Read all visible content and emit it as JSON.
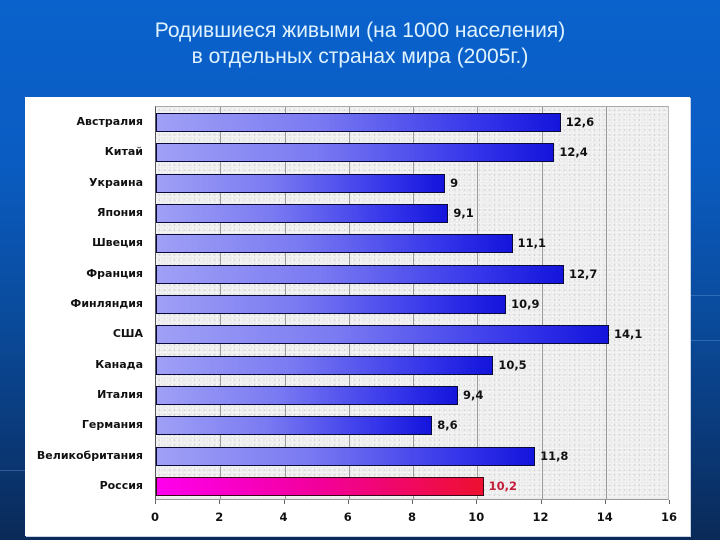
{
  "slide": {
    "title_line1": "Родившиеся живыми (на 1000 населения)",
    "title_line2": "в отдельных странах мира (2005г.)",
    "colors": {
      "background_top": "#0a62cc",
      "background_bottom": "#0a2a58",
      "title_text": "#dff2ff",
      "bar_start": "#a0a0f6",
      "bar_end": "#1414dc",
      "highlight_bar_start": "#ff00ee",
      "highlight_bar_end": "#ee1030",
      "highlight_label": "#c4203a"
    }
  },
  "chart_data": {
    "type": "bar",
    "orientation": "horizontal",
    "title": "Родившиеся живыми (на 1000 населения) в отдельных странах мира (2005г.)",
    "xlabel": "",
    "ylabel": "",
    "xlim": [
      0,
      16
    ],
    "xticks": [
      "0",
      "2",
      "4",
      "6",
      "8",
      "10",
      "12",
      "14",
      "16"
    ],
    "grid": true,
    "legend": null,
    "categories": [
      "Австралия",
      "Китай",
      "Украина",
      "Япония",
      "Швеция",
      "Франция",
      "Финляндия",
      "США",
      "Канада",
      "Италия",
      "Германия",
      "Великобритания",
      "Россия"
    ],
    "values": [
      12.6,
      12.4,
      9,
      9.1,
      11.1,
      12.7,
      10.9,
      14.1,
      10.5,
      9.4,
      8.6,
      11.8,
      10.2
    ],
    "value_labels": [
      "12,6",
      "12,4",
      "9",
      "9,1",
      "11,1",
      "12,7",
      "10,9",
      "14,1",
      "10,5",
      "9,4",
      "8,6",
      "11,8",
      "10,2"
    ],
    "highlighted_category": "Россия"
  }
}
